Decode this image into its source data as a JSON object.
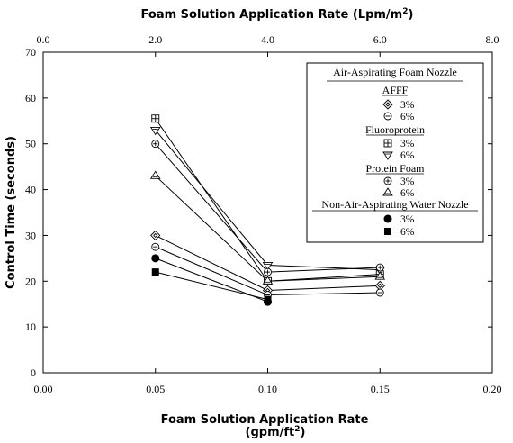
{
  "chart_data": {
    "type": "line",
    "xlabel_bottom": "Foam Solution Application Rate",
    "xlabel_bottom_unit": "(gpm/ft",
    "xlabel_bottom_unit_close": ")",
    "xlabel_top": "Foam Solution Application Rate (Lpm/m",
    "xlabel_top_close": ")",
    "superscript": "2",
    "ylabel": "Control Time (seconds)",
    "xlim": [
      0.0,
      0.2
    ],
    "ylim": [
      0,
      70
    ],
    "x_ticks": [
      "0.00",
      "0.05",
      "0.10",
      "0.15",
      "0.20"
    ],
    "x_top_ticks": [
      "0.0",
      "2.0",
      "4.0",
      "6.0",
      "8.0"
    ],
    "y_ticks": [
      "0",
      "10",
      "20",
      "30",
      "40",
      "50",
      "60",
      "70"
    ],
    "grid": false,
    "legend_position": "top-right",
    "legend": {
      "title": "Air-Aspirating Foam Nozzle",
      "groups": [
        {
          "heading": "AFFF",
          "entries": [
            "3%",
            "6%"
          ]
        },
        {
          "heading": "Fluoroprotein",
          "entries": [
            "3%",
            "6%"
          ]
        },
        {
          "heading": "Protein Foam",
          "entries": [
            "3%",
            "6%"
          ]
        },
        {
          "heading": "Non-Air-Aspirating Water Nozzle",
          "entries": [
            "3%",
            "6%"
          ]
        }
      ]
    },
    "series": [
      {
        "name": "AFFF 3%",
        "marker": "diamond",
        "x": [
          0.05,
          0.1,
          0.15
        ],
        "y": [
          30,
          18,
          19
        ]
      },
      {
        "name": "AFFF 6%",
        "marker": "circle-minus",
        "x": [
          0.05,
          0.1,
          0.15
        ],
        "y": [
          27.5,
          17,
          17.5
        ]
      },
      {
        "name": "Fluoroprotein 3%",
        "marker": "square-plus",
        "x": [
          0.05,
          0.1,
          0.15
        ],
        "y": [
          55.5,
          20,
          21.5
        ]
      },
      {
        "name": "Fluoroprotein 6%",
        "marker": "triangle-down",
        "x": [
          0.05,
          0.1,
          0.15
        ],
        "y": [
          53,
          23.5,
          22.5
        ]
      },
      {
        "name": "Protein Foam 3%",
        "marker": "circle-plus",
        "x": [
          0.05,
          0.1,
          0.15
        ],
        "y": [
          50,
          22,
          23
        ]
      },
      {
        "name": "Protein Foam 6%",
        "marker": "triangle-up",
        "x": [
          0.05,
          0.1,
          0.15
        ],
        "y": [
          43,
          20,
          21
        ]
      },
      {
        "name": "Water Nozzle 3%",
        "marker": "filled-circle",
        "x": [
          0.05,
          0.1
        ],
        "y": [
          25,
          15.5
        ]
      },
      {
        "name": "Water Nozzle 6%",
        "marker": "filled-square",
        "x": [
          0.05,
          0.1
        ],
        "y": [
          22,
          16
        ]
      }
    ]
  }
}
